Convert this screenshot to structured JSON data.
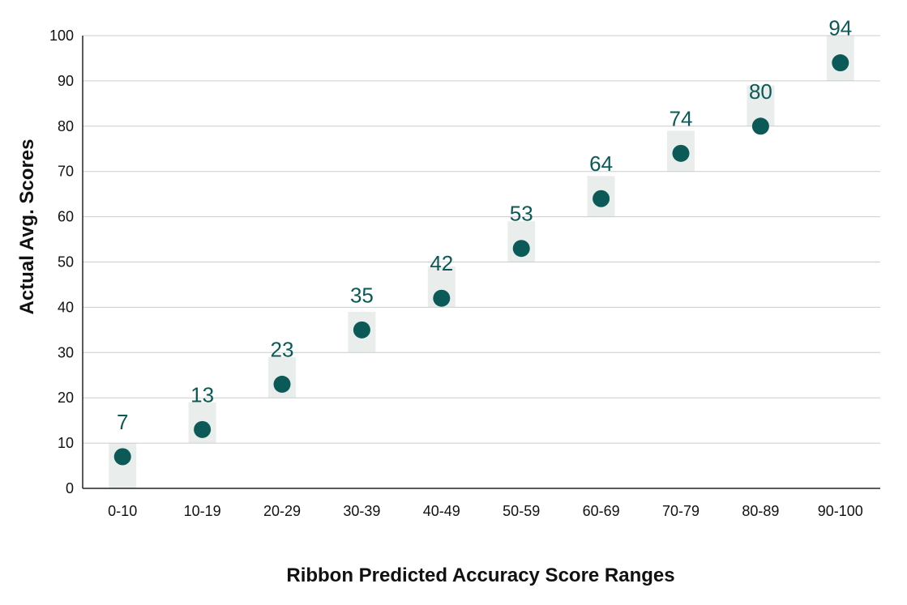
{
  "chart_data": {
    "type": "scatter",
    "title": "",
    "xlabel": "Ribbon Predicted Accuracy Score Ranges",
    "ylabel": "Actual Avg. Scores",
    "categories": [
      "0-10",
      "10-19",
      "20-29",
      "30-39",
      "40-49",
      "50-59",
      "60-69",
      "70-79",
      "80-89",
      "90-100"
    ],
    "values": [
      7,
      13,
      23,
      35,
      42,
      53,
      64,
      74,
      80,
      94
    ],
    "data_labels": [
      "7",
      "13",
      "23",
      "35",
      "42",
      "53",
      "64",
      "74",
      "80",
      "94"
    ],
    "range_bands": [
      [
        0,
        10
      ],
      [
        10,
        19
      ],
      [
        20,
        29
      ],
      [
        30,
        39
      ],
      [
        40,
        49
      ],
      [
        50,
        59
      ],
      [
        60,
        69
      ],
      [
        70,
        79
      ],
      [
        80,
        89
      ],
      [
        90,
        100
      ]
    ],
    "ylim": [
      0,
      100
    ],
    "yticks": [
      "0",
      "10",
      "20",
      "30",
      "40",
      "50",
      "60",
      "70",
      "80",
      "90",
      "100"
    ],
    "grid": true,
    "legend": "none",
    "colors": {
      "point": "#0b5a57",
      "label": "#0b5a57",
      "band": "#e9eeed",
      "grid": "#cccccc",
      "axis": "#222222",
      "text": "#111111"
    }
  }
}
